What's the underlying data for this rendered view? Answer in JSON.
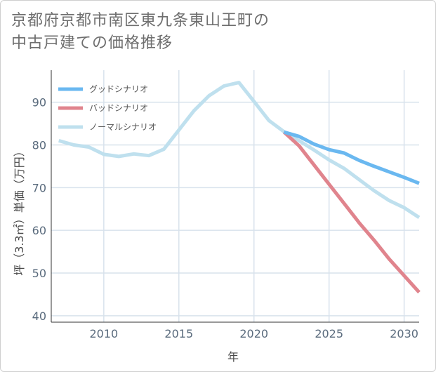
{
  "title": {
    "line1": "京都府京都市南区東九条東山王町の",
    "line2": "中古戸建ての価格推移"
  },
  "chart_data": {
    "type": "line",
    "xlabel": "年",
    "ylabel": "坪（3.3㎡）単価（万円）",
    "xlim": [
      2006.5,
      2031
    ],
    "ylim": [
      38.5,
      97.5
    ],
    "x_ticks": [
      2010,
      2015,
      2020,
      2025,
      2030
    ],
    "y_ticks": [
      40,
      50,
      60,
      70,
      80,
      90
    ],
    "grid": true,
    "legend_position": "top-left",
    "series": [
      {
        "name": "グッドシナリオ",
        "color": "#6ab8f0",
        "x": [
          2022,
          2023,
          2024,
          2025,
          2026,
          2027,
          2028,
          2029,
          2030,
          2031
        ],
        "y": [
          83.0,
          82.0,
          80.2,
          78.9,
          78.1,
          76.4,
          75.0,
          73.7,
          72.4,
          71.0
        ]
      },
      {
        "name": "バッドシナリオ",
        "color": "#e0848d",
        "x": [
          2022,
          2023,
          2024,
          2025,
          2026,
          2027,
          2028,
          2029,
          2030,
          2031
        ],
        "y": [
          83.0,
          79.8,
          75.3,
          70.8,
          66.3,
          61.8,
          57.7,
          53.3,
          49.4,
          45.5
        ]
      },
      {
        "name": "ノーマルシナリオ",
        "color": "#bfe0ee",
        "x": [
          2007,
          2008,
          2009,
          2010,
          2011,
          2012,
          2013,
          2014,
          2015,
          2016,
          2017,
          2018,
          2019,
          2020,
          2021,
          2022,
          2023,
          2024,
          2025,
          2026,
          2027,
          2028,
          2029,
          2030,
          2031
        ],
        "y": [
          81.0,
          80.0,
          79.5,
          77.8,
          77.3,
          77.9,
          77.5,
          79.0,
          83.5,
          88.0,
          91.5,
          93.8,
          94.6,
          90.2,
          85.7,
          83.1,
          81.0,
          78.8,
          76.5,
          74.5,
          71.9,
          69.3,
          67.0,
          65.3,
          63.0
        ]
      }
    ]
  }
}
